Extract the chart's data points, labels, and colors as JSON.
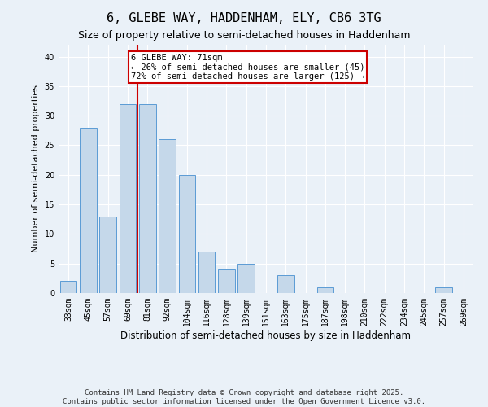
{
  "title": "6, GLEBE WAY, HADDENHAM, ELY, CB6 3TG",
  "subtitle": "Size of property relative to semi-detached houses in Haddenham",
  "xlabel": "Distribution of semi-detached houses by size in Haddenham",
  "ylabel": "Number of semi-detached properties",
  "categories": [
    "33sqm",
    "45sqm",
    "57sqm",
    "69sqm",
    "81sqm",
    "92sqm",
    "104sqm",
    "116sqm",
    "128sqm",
    "139sqm",
    "151sqm",
    "163sqm",
    "175sqm",
    "187sqm",
    "198sqm",
    "210sqm",
    "222sqm",
    "234sqm",
    "245sqm",
    "257sqm",
    "269sqm"
  ],
  "values": [
    2,
    28,
    13,
    32,
    32,
    26,
    20,
    7,
    4,
    5,
    0,
    3,
    0,
    1,
    0,
    0,
    0,
    0,
    0,
    1,
    0
  ],
  "bar_color": "#c5d8ea",
  "bar_edge_color": "#5b9bd5",
  "vline_index": 3,
  "annotation_text": "6 GLEBE WAY: 71sqm\n← 26% of semi-detached houses are smaller (45)\n72% of semi-detached houses are larger (125) →",
  "annotation_box_color": "#ffffff",
  "annotation_box_edge": "#cc0000",
  "vline_color": "#cc0000",
  "ylim": [
    0,
    42
  ],
  "yticks": [
    0,
    5,
    10,
    15,
    20,
    25,
    30,
    35,
    40
  ],
  "footer": "Contains HM Land Registry data © Crown copyright and database right 2025.\nContains public sector information licensed under the Open Government Licence v3.0.",
  "background_color": "#eaf1f8",
  "plot_background": "#eaf1f8",
  "title_fontsize": 11,
  "subtitle_fontsize": 9,
  "tick_fontsize": 7,
  "ylabel_fontsize": 8,
  "xlabel_fontsize": 8.5,
  "footer_fontsize": 6.5,
  "annotation_fontsize": 7.5
}
